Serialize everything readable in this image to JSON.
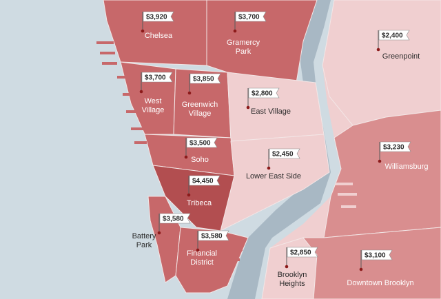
{
  "colors": {
    "water": "#cfdbe2",
    "river_dark": "#a8b8c4",
    "tier_1": "#b24e50",
    "tier_2": "#c7686a",
    "tier_3": "#d98e8f",
    "tier_4": "#f0cfd0",
    "marker": "#8c1a1a"
  },
  "neighborhoods": [
    {
      "id": "chelsea",
      "name_lines": [
        "Chelsea"
      ],
      "price": "$3,920"
    },
    {
      "id": "gramercy",
      "name_lines": [
        "Gramercy",
        "Park"
      ],
      "price": "$3,700"
    },
    {
      "id": "greenpoint",
      "name_lines": [
        "Greenpoint"
      ],
      "price": "$2,400"
    },
    {
      "id": "west-village",
      "name_lines": [
        "West",
        "Village"
      ],
      "price": "$3,700"
    },
    {
      "id": "greenwich",
      "name_lines": [
        "Greenwich",
        "Village"
      ],
      "price": "$3,850"
    },
    {
      "id": "east-village",
      "name_lines": [
        "East Village"
      ],
      "price": "$2,800"
    },
    {
      "id": "williamsburg",
      "name_lines": [
        "Williamsburg"
      ],
      "price": "$3,230"
    },
    {
      "id": "soho",
      "name_lines": [
        "Soho"
      ],
      "price": "$3,500"
    },
    {
      "id": "les",
      "name_lines": [
        "Lower East Side"
      ],
      "price": "$2,450"
    },
    {
      "id": "tribeca",
      "name_lines": [
        "Tribeca"
      ],
      "price": "$4,450"
    },
    {
      "id": "battery",
      "name_lines": [
        "Battery",
        "Park"
      ],
      "price": "$3,580"
    },
    {
      "id": "fidi",
      "name_lines": [
        "Financial",
        "District"
      ],
      "price": "$3,580"
    },
    {
      "id": "brooklyn-heights",
      "name_lines": [
        "Brooklyn",
        "Heights"
      ],
      "price": "$2,850"
    },
    {
      "id": "downtown-brooklyn",
      "name_lines": [
        "Downtown Brooklyn"
      ],
      "price": "$3,100"
    }
  ]
}
